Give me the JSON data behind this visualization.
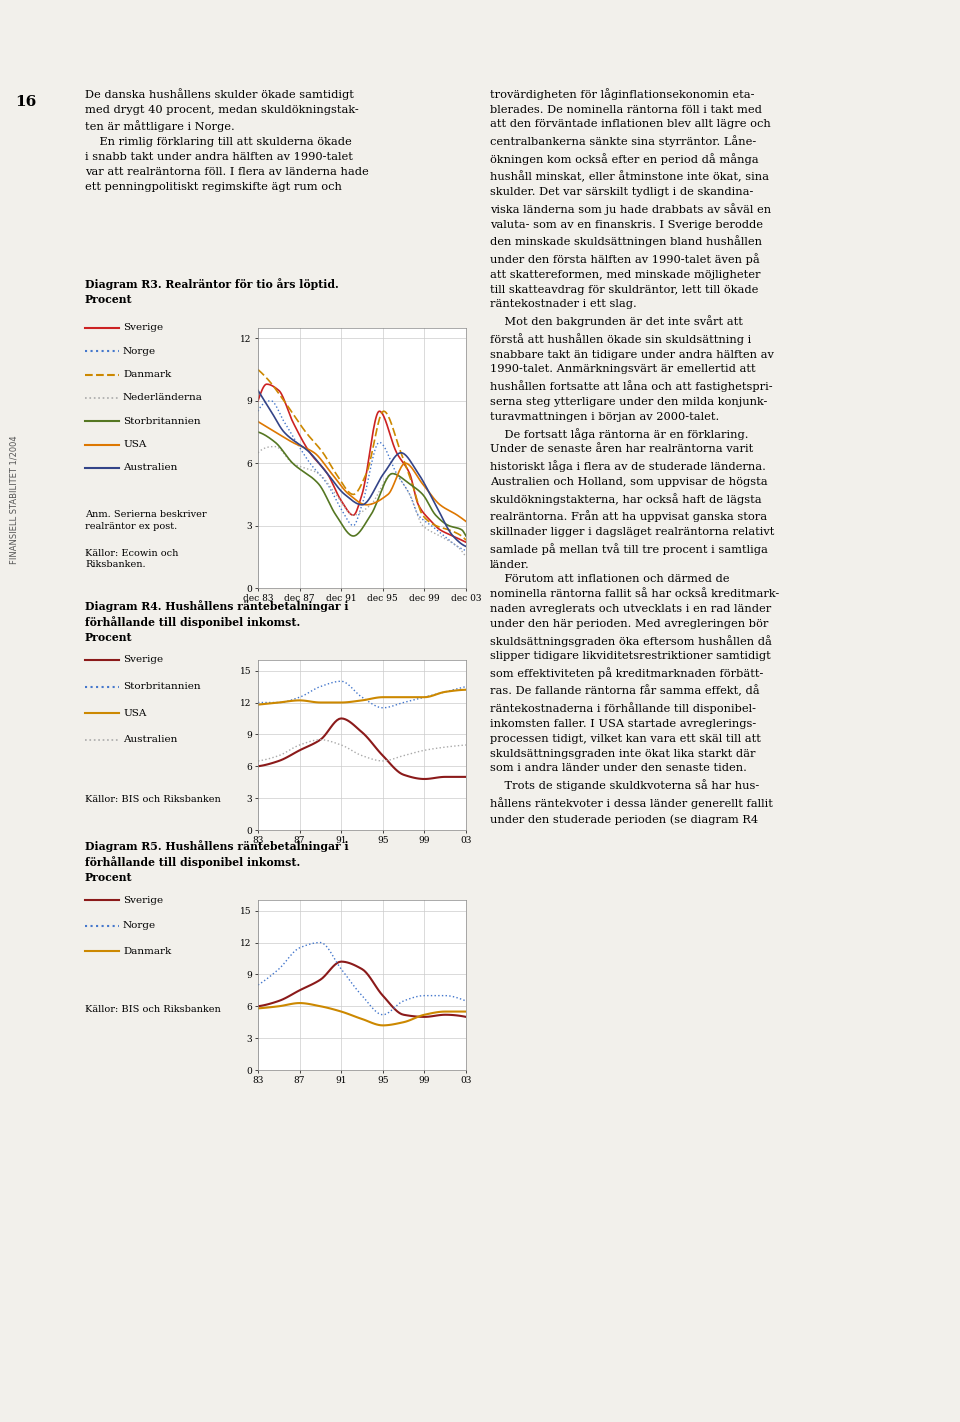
{
  "page_bg": "#f2f0eb",
  "header_blue": "#3d6fa0",
  "footer_blue": "#3d6fa0",
  "diag3_title": "Diagram R3. Realräntor för tio års löptid.\nProcent",
  "diag3_note": "Anm. Serierna beskriver\nrealräntor ex post.",
  "diag3_source": "Källor: Ecowin och\nRiksbanken.",
  "diag3_legend": [
    "Sverige",
    "Norge",
    "Danmark",
    "Nederländerna",
    "Storbritannien",
    "USA",
    "Australien"
  ],
  "diag4_title": "Diagram R4. Hushållens räntebetalningar i\nförhållande till disponibel inkomst.\nProcent",
  "diag4_source": "Källor: BIS och Riksbanken",
  "diag4_legend": [
    "Sverige",
    "Storbritannien",
    "USA",
    "Australien"
  ],
  "diag5_title": "Diagram R5. Hushållens räntebetalningar i\nförhållande till disponibel inkomst.\nProcent",
  "diag5_source": "Källor: BIS och Riksbanken",
  "diag5_legend": [
    "Sverige",
    "Norge",
    "Danmark"
  ],
  "col_left_texts": [
    "De danska hushållens skulder ökade samtidigt",
    "med drygt 40 procent, medan skuldökningstak-",
    "ten är måttligare i Norge.",
    "    En rimlig förklaring till att skulderna ökade",
    "i snabb takt under andra hälften av 1990-talet",
    "var att realräntorna föll. I flera av länderna hade",
    "ett penningpolitiskt regimskifte ägt rum och"
  ],
  "col_right_texts_top": [
    "trovärdigheten för låginflationsekonomin eta-",
    "blerades. De nominella räntorna föll i takt med",
    "att den förväntade inflationen blev allt lägre och",
    "centralbankerna sänkte sina styrräntor. Låne-",
    "ökningen kom också efter en period då många",
    "hushåll minskat, eller åtminstone inte ökat, sina",
    "skulder. Det var särskilt tydligt i de skandina-",
    "viska länderna som ju hade drabbats av såväl en",
    "valuta- som av en finanskris. I Sverige berodde",
    "den minskade skuldsättningen bland hushållen",
    "under den första hälften av 1990-talet även på",
    "att skattereformen, med minskade möjligheter",
    "till skatteavdrag för skuldräntor, lett till ökade",
    "räntekostnader i ett slag.",
    "    Mot den bakgrunden är det inte svårt att",
    "förstå att hushållen ökade sin skuldsättning i",
    "snabbare takt än tidigare under andra hälften av",
    "1990-talet. Anmärkningsvärt är emellertid att",
    "hushållen fortsatte att låna och att fastighetspri-",
    "serna steg ytterligare under den milda konjunk-",
    "turavmattningen i början av 2000-talet.",
    "    De fortsatt låga räntorna är en förklaring.",
    "Under de senaste åren har realräntorna varit",
    "historiskt låga i flera av de studerade länderna.",
    "Australien och Holland, som uppvisar de högsta",
    "skuldökningstakterna, har också haft de lägsta",
    "realräntorna. Från att ha uppvisat ganska stora",
    "skillnader ligger i dagsläget realräntorna relativt",
    "samlade på mellan två till tre procent i samtliga",
    "länder.",
    "    Förutom att inflationen och därmed de",
    "nominella räntorna fallit så har också kreditmark-",
    "naden avreglerats och utvecklats i en rad länder",
    "under den här perioden. Med avregleringen bör",
    "skuldsättningsgraden öka eftersom hushållen då",
    "slipper tidigare likviditetsrestriktioner samtidigt",
    "som effektiviteten på kreditmarknaden förbätt-",
    "ras. De fallande räntorna får samma effekt, då",
    "räntekostnaderna i förhållande till disponibel-",
    "inkomsten faller. I USA startade avreglerings-",
    "processen tidigt, vilket kan vara ett skäl till att",
    "skuldsättningsgraden inte ökat lika starkt där",
    "som i andra länder under den senaste tiden.",
    "    Trots de stigande skuldkvoterna så har hus-",
    "hållens räntekvoter i dessa länder generellt fallit",
    "under den studerade perioden (se diagram R4"
  ]
}
